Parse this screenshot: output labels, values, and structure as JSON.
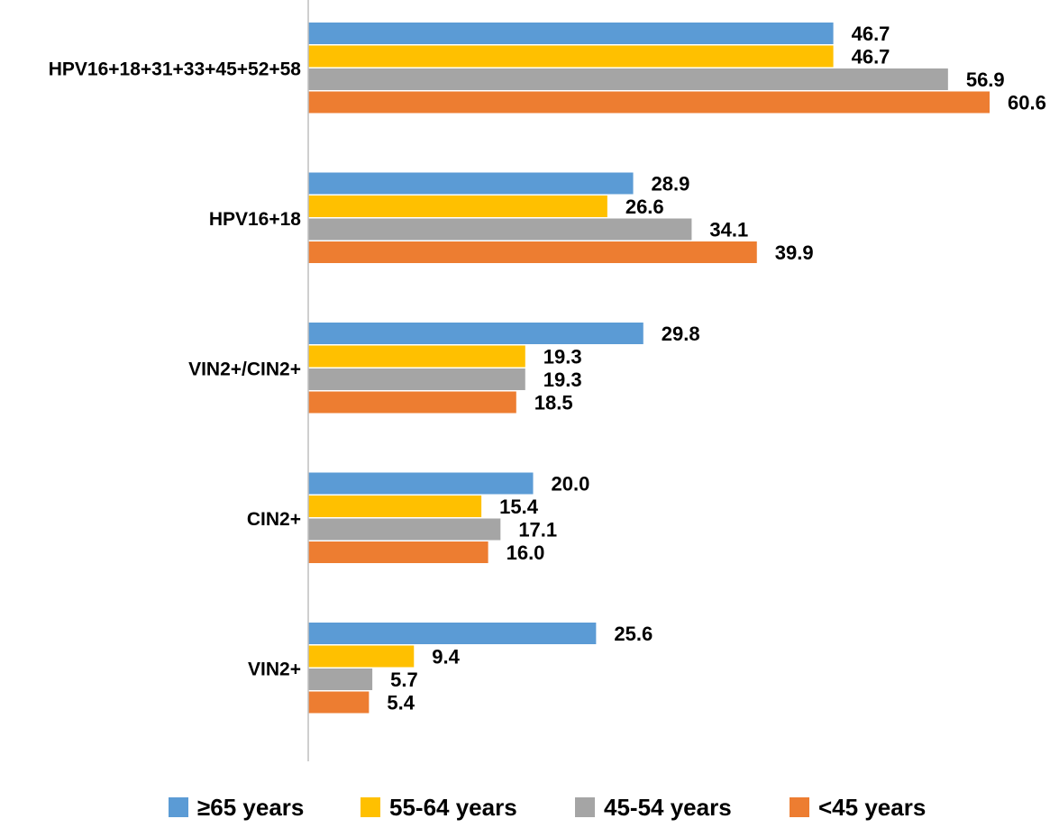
{
  "chart_data": {
    "type": "bar",
    "orientation": "horizontal",
    "title": "",
    "xlabel": "",
    "ylabel": "",
    "grid": false,
    "legend_position": "bottom",
    "categories": [
      "HPV16+18+31+33+45+52+58",
      "HPV16+18",
      "VIN2+/CIN2+",
      "CIN2+",
      "VIN2+"
    ],
    "series": [
      {
        "name": "≥65 years",
        "color": "#5B9BD5",
        "values": [
          46.7,
          28.9,
          29.8,
          20.0,
          25.6
        ],
        "labels": [
          "46.7",
          "28.9",
          "29.8",
          "20.0",
          "25.6"
        ]
      },
      {
        "name": "55-64 years",
        "color": "#FFC000",
        "values": [
          46.7,
          26.6,
          19.3,
          15.4,
          9.4
        ],
        "labels": [
          "46.7",
          "26.6",
          "19.3",
          "15.4",
          "9.4"
        ]
      },
      {
        "name": "45-54 years",
        "color": "#A5A5A5",
        "values": [
          56.9,
          34.1,
          19.3,
          17.1,
          5.7
        ],
        "labels": [
          "56.9",
          "34.1",
          "19.3",
          "17.1",
          "5.7"
        ]
      },
      {
        "name": "<45 years",
        "color": "#ED7D31",
        "values": [
          60.6,
          39.9,
          18.5,
          16.0,
          5.4
        ],
        "labels": [
          "60.6",
          "39.9",
          "18.5",
          "16.0",
          "5.4"
        ]
      }
    ],
    "xlim": [
      0,
      60.6
    ]
  }
}
